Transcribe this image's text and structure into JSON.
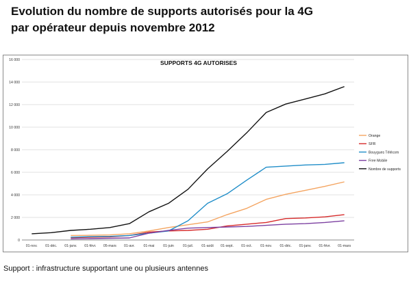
{
  "page": {
    "title_line1": "Evolution du nombre de supports autorisés pour la 4G",
    "title_line2": "par opérateur depuis novembre 2012",
    "footnote": "Support : infrastructure supportant une ou plusieurs antennes"
  },
  "chart_data": {
    "type": "line",
    "title": "SUPPORTS 4G AUTORISES",
    "xlabel": "",
    "ylabel": "",
    "ylim": [
      0,
      16000
    ],
    "yticks": [
      0,
      2000,
      4000,
      6000,
      8000,
      10000,
      12000,
      14000,
      16000
    ],
    "ytick_labels": [
      "0",
      "2 000",
      "4 000",
      "6 000",
      "8 000",
      "10 000",
      "12 000",
      "14 000",
      "16 000"
    ],
    "grid": true,
    "legend_position": "right",
    "categories": [
      "01-nov.",
      "01-déc.",
      "01-janv.",
      "01-févr.",
      "05-mars",
      "01-avr.",
      "01-mai",
      "01-juin",
      "01-juil.",
      "01-août",
      "01-sept.",
      "01-oct.",
      "01-nov.",
      "01-déc.",
      "01-janv.",
      "01-févr.",
      "01-mars"
    ],
    "series": [
      {
        "name": "Orange",
        "color": "#f4a460",
        "values": [
          null,
          null,
          400,
          420,
          450,
          550,
          800,
          1100,
          1350,
          1600,
          2250,
          2800,
          3600,
          4050,
          4400,
          4750,
          5150
        ]
      },
      {
        "name": "SFR",
        "color": "#d62a2a",
        "values": [
          null,
          null,
          200,
          250,
          280,
          400,
          700,
          800,
          850,
          950,
          1250,
          1400,
          1550,
          1900,
          1950,
          2050,
          2250
        ]
      },
      {
        "name": "Bouygues Télécom",
        "color": "#1f8dc8",
        "values": [
          null,
          null,
          250,
          300,
          320,
          400,
          600,
          800,
          1700,
          3250,
          4100,
          5300,
          6450,
          6550,
          6650,
          6700,
          6850
        ]
      },
      {
        "name": "Free Mobile",
        "color": "#7b3fa0",
        "values": [
          null,
          null,
          100,
          120,
          150,
          180,
          600,
          850,
          1050,
          1100,
          1150,
          1200,
          1300,
          1400,
          1450,
          1550,
          1700
        ]
      },
      {
        "name": "Nombre de supports",
        "color": "#111111",
        "values": [
          550,
          650,
          850,
          950,
          1100,
          1450,
          2500,
          3250,
          4500,
          6300,
          7850,
          9500,
          11300,
          12050,
          12500,
          12950,
          13600
        ]
      }
    ]
  }
}
